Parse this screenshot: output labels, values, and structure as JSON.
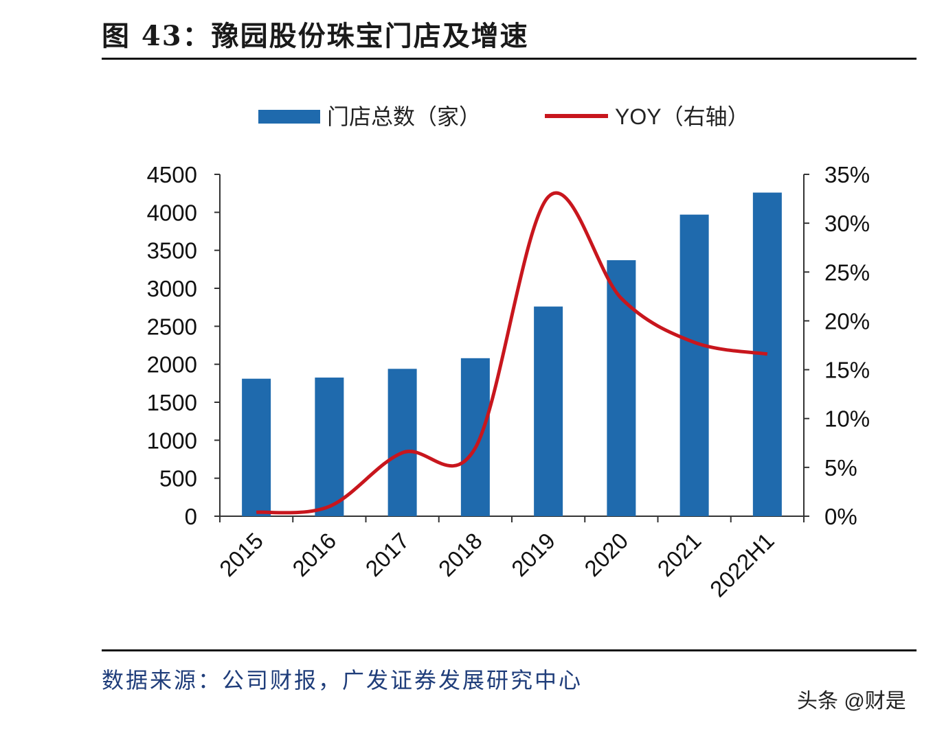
{
  "title": "图 43：豫园股份珠宝门店及增速",
  "source": "数据来源：公司财报，广发证券发展研究中心",
  "watermark": "头条 @财是",
  "chart_data": {
    "type": "bar+line",
    "categories": [
      "2015",
      "2016",
      "2017",
      "2018",
      "2019",
      "2020",
      "2021",
      "2022H1"
    ],
    "series": [
      {
        "name": "门店总数（家）",
        "type": "bar",
        "axis": "left",
        "color": "#1f6aad",
        "values": [
          1810,
          1825,
          1940,
          2080,
          2760,
          3370,
          3970,
          4260
        ]
      },
      {
        "name": "YOY（右轴）",
        "type": "line",
        "axis": "right",
        "color": "#c8161d",
        "values": [
          0.4,
          1.0,
          6.5,
          7.0,
          32.7,
          22.3,
          17.8,
          16.6
        ]
      }
    ],
    "left_axis": {
      "ylim": [
        0,
        4500
      ],
      "ticks": [
        "0",
        "500",
        "1000",
        "1500",
        "2000",
        "2500",
        "3000",
        "3500",
        "4000",
        "4500"
      ]
    },
    "right_axis": {
      "ylim": [
        0,
        35
      ],
      "unit": "%",
      "ticks": [
        "0%",
        "5%",
        "10%",
        "15%",
        "20%",
        "25%",
        "30%",
        "35%"
      ]
    },
    "legend": {
      "position": "top",
      "labels": [
        "门店总数（家）",
        "YOY（右轴）"
      ]
    },
    "grid": false
  }
}
